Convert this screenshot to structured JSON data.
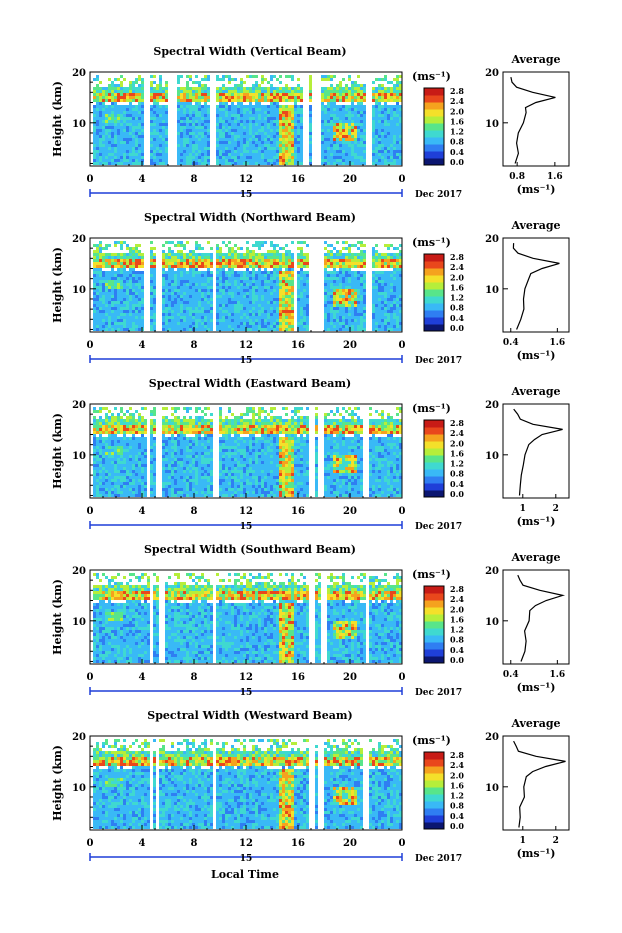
{
  "figure": {
    "xlabel": "Local Time",
    "date_label": "Dec 2017",
    "day_label": "15",
    "colorbar_unit": "(ms⁻¹)",
    "avg_title": "Average",
    "avg_xlabel": "(ms⁻¹)",
    "ylabel": "Height (km)",
    "colorbar_ticks": [
      "0.0",
      "0.4",
      "0.8",
      "1.2",
      "1.6",
      "2.0",
      "2.4",
      "2.8"
    ],
    "colorbar_colors": [
      "#0b1670",
      "#1f3fd8",
      "#2f7ef2",
      "#39b9f6",
      "#3fd9d0",
      "#58e58a",
      "#b6ee3a",
      "#f4e02a",
      "#f5a21e",
      "#e9471c",
      "#c81b16"
    ]
  },
  "chart_data": [
    {
      "type": "heatmap",
      "title": "Spectral Width (Vertical Beam)",
      "x_ticks": [
        "0",
        "4",
        "8",
        "12",
        "16",
        "20",
        "0"
      ],
      "y_ticks": [
        "10",
        "20"
      ],
      "x_range": [
        0,
        24
      ],
      "y_range": [
        1.5,
        20
      ],
      "clim": [
        0.0,
        3.0
      ],
      "data_gaps_hours": [
        [
          4.0,
          4.5
        ],
        [
          6.0,
          6.5
        ],
        [
          9.2,
          9.6
        ],
        [
          16.3,
          16.7
        ],
        [
          17.0,
          17.6
        ],
        [
          21.2,
          21.6
        ]
      ],
      "average_profile": {
        "xticks": [
          "0.8",
          "1.6"
        ],
        "xlim": [
          0.5,
          1.9
        ],
        "height_km": [
          2,
          4,
          6,
          8,
          10,
          12,
          13,
          14,
          15,
          16,
          17,
          18,
          19
        ],
        "width_ms": [
          0.75,
          0.8,
          0.82,
          0.85,
          0.9,
          0.95,
          1.0,
          1.2,
          1.6,
          1.1,
          0.8,
          0.7,
          0.65
        ]
      }
    },
    {
      "type": "heatmap",
      "title": "Spectral Width (Northward Beam)",
      "x_ticks": [
        "0",
        "4",
        "8",
        "12",
        "16",
        "20",
        "0"
      ],
      "y_ticks": [
        "10",
        "20"
      ],
      "x_range": [
        0,
        24
      ],
      "y_range": [
        1.5,
        20
      ],
      "clim": [
        0.0,
        3.0
      ],
      "data_gaps_hours": [
        [
          4.0,
          4.4
        ],
        [
          5.0,
          5.4
        ],
        [
          9.3,
          9.6
        ],
        [
          15.6,
          15.8
        ],
        [
          16.7,
          17.1
        ],
        [
          17.3,
          17.8
        ],
        [
          21.2,
          21.5
        ]
      ],
      "average_profile": {
        "xticks": [
          "0.4",
          "1.6"
        ],
        "xlim": [
          0.2,
          1.9
        ],
        "height_km": [
          2,
          4,
          6,
          8,
          10,
          12,
          13,
          14,
          15,
          16,
          17,
          18,
          19
        ],
        "width_ms": [
          0.6,
          0.65,
          0.7,
          0.75,
          0.8,
          0.85,
          0.9,
          1.2,
          1.7,
          1.0,
          0.6,
          0.5,
          0.45
        ]
      }
    },
    {
      "type": "heatmap",
      "title": "Spectral Width (Eastward Beam)",
      "x_ticks": [
        "0",
        "4",
        "8",
        "12",
        "16",
        "20",
        "0"
      ],
      "y_ticks": [
        "10",
        "20"
      ],
      "x_range": [
        0,
        24
      ],
      "y_range": [
        1.5,
        20
      ],
      "clim": [
        0.0,
        3.0
      ],
      "data_gaps_hours": [
        [
          4.2,
          4.5
        ],
        [
          5.0,
          5.4
        ],
        [
          9.3,
          9.7
        ],
        [
          16.8,
          17.2
        ],
        [
          17.5,
          17.8
        ],
        [
          21.0,
          21.4
        ]
      ],
      "average_profile": {
        "xticks": [
          "1",
          "2"
        ],
        "xlim": [
          0.4,
          2.4
        ],
        "height_km": [
          2,
          4,
          6,
          8,
          10,
          12,
          13,
          14,
          15,
          16,
          17,
          18,
          19
        ],
        "width_ms": [
          0.9,
          0.95,
          1.0,
          1.05,
          1.1,
          1.2,
          1.3,
          1.6,
          2.2,
          1.3,
          0.9,
          0.8,
          0.75
        ]
      }
    },
    {
      "type": "heatmap",
      "title": "Spectral Width (Southward Beam)",
      "x_ticks": [
        "0",
        "4",
        "8",
        "12",
        "16",
        "20",
        "0"
      ],
      "y_ticks": [
        "10",
        "20"
      ],
      "x_range": [
        0,
        24
      ],
      "y_range": [
        1.5,
        20
      ],
      "clim": [
        0.0,
        3.0
      ],
      "data_gaps_hours": [
        [
          4.4,
          4.7
        ],
        [
          5.2,
          5.6
        ],
        [
          9.3,
          9.6
        ],
        [
          16.8,
          17.1
        ],
        [
          17.6,
          18.0
        ],
        [
          21.1,
          21.4
        ]
      ],
      "average_profile": {
        "xticks": [
          "0.4",
          "1.6"
        ],
        "xlim": [
          0.2,
          1.9
        ],
        "height_km": [
          2,
          4,
          6,
          8,
          10,
          12,
          13,
          14,
          15,
          16,
          17,
          18,
          19
        ],
        "width_ms": [
          0.7,
          0.75,
          0.8,
          0.78,
          0.85,
          0.9,
          1.0,
          1.3,
          1.7,
          1.1,
          0.75,
          0.65,
          0.6
        ]
      }
    },
    {
      "type": "heatmap",
      "title": "Spectral Width (Westward Beam)",
      "x_ticks": [
        "0",
        "4",
        "8",
        "12",
        "16",
        "20",
        "0"
      ],
      "y_ticks": [
        "10",
        "20"
      ],
      "x_range": [
        0,
        24
      ],
      "y_range": [
        1.5,
        20
      ],
      "clim": [
        0.0,
        3.0
      ],
      "data_gaps_hours": [
        [
          4.4,
          4.7
        ],
        [
          5.0,
          5.3
        ],
        [
          9.3,
          9.6
        ],
        [
          16.8,
          17.1
        ],
        [
          17.5,
          17.8
        ],
        [
          21.0,
          21.3
        ]
      ],
      "average_profile": {
        "xticks": [
          "1",
          "2"
        ],
        "xlim": [
          0.4,
          2.4
        ],
        "height_km": [
          2,
          4,
          6,
          8,
          10,
          12,
          13,
          14,
          15,
          16,
          17,
          18,
          19
        ],
        "width_ms": [
          0.85,
          0.9,
          0.95,
          1.0,
          1.05,
          1.15,
          1.3,
          1.7,
          2.3,
          1.4,
          0.9,
          0.8,
          0.75
        ]
      }
    }
  ]
}
